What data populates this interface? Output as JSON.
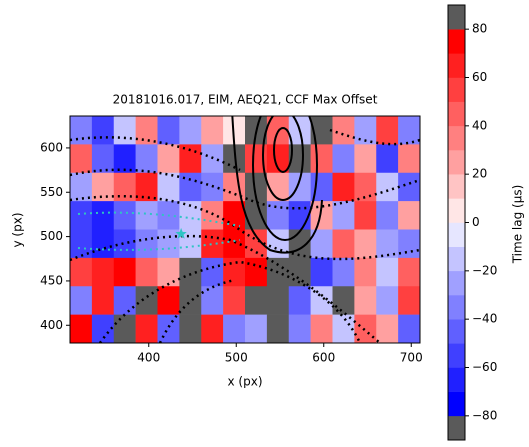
{
  "chart_data": {
    "type": "heatmap",
    "title": "20181016.017, EIM, AEQ21, CCF Max Offset",
    "x_label": "x (px)",
    "y_label": "y (px)",
    "xlim": [
      310,
      710
    ],
    "ylim": [
      380,
      636
    ],
    "xticks": [
      400,
      500,
      600,
      700
    ],
    "yticks": [
      400,
      450,
      500,
      550,
      600
    ],
    "x": [
      322.5,
      347.5,
      372.5,
      397.5,
      422.5,
      447.5,
      472.5,
      497.5,
      522.5,
      547.5,
      572.5,
      597.5,
      622.5,
      647.5,
      672.5,
      697.5
    ],
    "y": [
      620,
      588,
      556,
      524,
      492,
      460,
      428,
      396
    ],
    "z": [
      [
        -40,
        -60,
        -20,
        30,
        -50,
        -30,
        20,
        0,
        null,
        40,
        -20,
        null,
        30,
        -30,
        50,
        -40
      ],
      [
        40,
        -50,
        -70,
        -40,
        20,
        60,
        -30,
        null,
        50,
        60,
        null,
        40,
        -40,
        20,
        -60,
        30
      ],
      [
        -30,
        20,
        40,
        60,
        -20,
        -50,
        -40,
        30,
        null,
        20,
        -30,
        -50,
        60,
        40,
        -20,
        -50
      ],
      [
        -60,
        -70,
        -50,
        -30,
        -40,
        -20,
        30,
        70,
        null,
        -40,
        -60,
        20,
        -30,
        50,
        -40,
        20
      ],
      [
        -60,
        -70,
        -60,
        -40,
        -30,
        -20,
        60,
        70,
        50,
        -20,
        null,
        -30,
        40,
        20,
        -30,
        -40
      ],
      [
        50,
        60,
        70,
        40,
        20,
        null,
        -50,
        60,
        70,
        null,
        null,
        -60,
        -40,
        30,
        -20,
        40
      ],
      [
        -40,
        60,
        -50,
        null,
        70,
        null,
        -40,
        50,
        null,
        null,
        -50,
        -20,
        null,
        20,
        -30,
        50
      ],
      [
        70,
        -60,
        null,
        60,
        -50,
        null,
        60,
        -40,
        -30,
        null,
        -40,
        30,
        -20,
        40,
        20,
        -50
      ]
    ],
    "null_color": "#5a5a5a",
    "marker": {
      "x": 437,
      "y": 503,
      "color": "#2ec4c4"
    },
    "colorbar": {
      "label": "Time lag (μs)",
      "levels": [
        -90,
        -80,
        -70,
        -60,
        -50,
        -40,
        -30,
        -20,
        -10,
        0,
        10,
        20,
        30,
        40,
        50,
        60,
        70,
        80,
        90
      ],
      "colors": [
        "#5a5a5a",
        "#0000ff",
        "#2020ff",
        "#4040ff",
        "#6060ff",
        "#8080ff",
        "#a0a0ff",
        "#c4c4ff",
        "#e6e6ff",
        "#ffe6e6",
        "#ffc4c4",
        "#ffa0a0",
        "#ff8080",
        "#ff6060",
        "#ff4040",
        "#ff2020",
        "#ff0000",
        "#5a5a5a"
      ],
      "ticks": [
        {
          "value": -80,
          "label": "−80"
        },
        {
          "value": -60,
          "label": "−60"
        },
        {
          "value": -40,
          "label": "−40"
        },
        {
          "value": -20,
          "label": "−20"
        },
        0,
        20,
        40,
        60,
        80
      ]
    }
  }
}
